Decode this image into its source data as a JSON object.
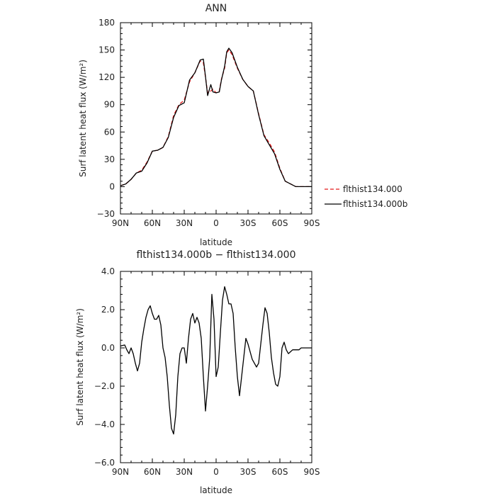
{
  "chart_data": [
    {
      "type": "line",
      "title": "ANN",
      "xlabel": "latitude",
      "ylabel": "Surf latent heat flux (W/m²)",
      "xlim": [
        90,
        -90
      ],
      "ylim": [
        -30,
        180
      ],
      "x_ticks": [
        90,
        60,
        30,
        0,
        -30,
        -60,
        -90
      ],
      "x_tick_labels": [
        "90N",
        "60N",
        "30N",
        "0",
        "30S",
        "60S",
        "90S"
      ],
      "y_ticks": [
        -30,
        0,
        30,
        60,
        90,
        120,
        150,
        180
      ],
      "y_tick_labels": [
        "−30",
        "0",
        "30",
        "60",
        "90",
        "120",
        "150",
        "180"
      ],
      "legend": {
        "placement": "right"
      },
      "series": [
        {
          "name": "flthist134.000",
          "color": "#e41a1c",
          "dash": "dashed",
          "x": [
            90,
            85,
            80,
            75,
            70,
            65,
            60,
            55,
            50,
            45,
            40,
            35,
            30,
            25,
            20,
            15,
            12,
            10,
            8,
            5,
            3,
            0,
            -3,
            -5,
            -8,
            -10,
            -12,
            -15,
            -20,
            -25,
            -30,
            -35,
            -40,
            -45,
            -50,
            -55,
            -60,
            -65,
            -70,
            -75,
            -80,
            -85,
            -90
          ],
          "y": [
            1,
            3,
            8,
            15,
            18,
            27,
            39,
            40,
            43,
            55,
            78,
            90,
            95,
            115,
            125,
            138,
            136,
            120,
            103,
            105,
            107,
            103,
            105,
            118,
            130,
            147,
            150,
            145,
            130,
            118,
            110,
            105,
            80,
            57,
            48,
            38,
            20,
            6,
            3,
            0,
            0,
            0,
            0
          ]
        },
        {
          "name": "flthist134.000b",
          "color": "#000000",
          "dash": "solid",
          "x": [
            90,
            85,
            80,
            75,
            70,
            65,
            60,
            55,
            50,
            45,
            40,
            35,
            30,
            25,
            20,
            15,
            12,
            10,
            8,
            5,
            3,
            0,
            -3,
            -5,
            -8,
            -10,
            -12,
            -15,
            -20,
            -25,
            -30,
            -35,
            -40,
            -45,
            -50,
            -55,
            -60,
            -65,
            -70,
            -75,
            -80,
            -85,
            -90
          ],
          "y": [
            1,
            3,
            8,
            15,
            17,
            26,
            39,
            40,
            43,
            54,
            76,
            89,
            92,
            117,
            125,
            139,
            140,
            121,
            100,
            112,
            104,
            103,
            104,
            117,
            132,
            148,
            152,
            147,
            131,
            118,
            110,
            105,
            79,
            56,
            46,
            36,
            19,
            6,
            3,
            0,
            0,
            0,
            0
          ]
        }
      ]
    },
    {
      "type": "line",
      "title": "flthist134.000b − flthist134.000",
      "xlabel": "latitude",
      "ylabel": "Surf latent heat flux (W/m²)",
      "xlim": [
        90,
        -90
      ],
      "ylim": [
        -6,
        4
      ],
      "x_ticks": [
        90,
        60,
        30,
        0,
        -30,
        -60,
        -90
      ],
      "x_tick_labels": [
        "90N",
        "60N",
        "30N",
        "0",
        "30S",
        "60S",
        "90S"
      ],
      "y_ticks": [
        -6,
        -4,
        -2,
        0,
        2,
        4
      ],
      "y_tick_labels": [
        "−6.0",
        "−4.0",
        "−2.0",
        "0.0",
        "2.0",
        "4.0"
      ],
      "series": [
        {
          "color": "#000000",
          "dash": "solid",
          "x": [
            90,
            86,
            84,
            82,
            80,
            78,
            76,
            74,
            72,
            70,
            68,
            66,
            64,
            62,
            60,
            58,
            56,
            54,
            52,
            50,
            48,
            46,
            44,
            42,
            40,
            38,
            36,
            34,
            32,
            30,
            28,
            26,
            24,
            22,
            20,
            18,
            16,
            14,
            12,
            10,
            8,
            6,
            4,
            2,
            0,
            -2,
            -4,
            -6,
            -8,
            -10,
            -12,
            -14,
            -16,
            -18,
            -20,
            -22,
            -24,
            -26,
            -28,
            -30,
            -32,
            -34,
            -36,
            -38,
            -40,
            -42,
            -44,
            -46,
            -48,
            -50,
            -52,
            -54,
            -56,
            -58,
            -60,
            -62,
            -64,
            -66,
            -68,
            -70,
            -72,
            -74,
            -76,
            -78,
            -80,
            -84,
            -88,
            -90
          ],
          "y": [
            0.1,
            0.15,
            -0.1,
            -0.3,
            0.0,
            -0.3,
            -0.8,
            -1.2,
            -0.8,
            0.3,
            1.0,
            1.6,
            2.0,
            2.2,
            1.8,
            1.5,
            1.5,
            1.7,
            1.2,
            0.0,
            -0.5,
            -1.5,
            -3.0,
            -4.2,
            -4.5,
            -3.5,
            -1.5,
            -0.3,
            0.0,
            0.0,
            -0.8,
            0.5,
            1.5,
            1.8,
            1.3,
            1.6,
            1.3,
            0.5,
            -1.5,
            -3.3,
            -2.0,
            -0.5,
            2.8,
            1.5,
            -1.5,
            -1.0,
            0.8,
            2.5,
            3.2,
            2.8,
            2.3,
            2.3,
            1.8,
            0.0,
            -1.5,
            -2.5,
            -1.5,
            -0.5,
            0.5,
            0.2,
            -0.2,
            -0.6,
            -0.8,
            -1.0,
            -0.8,
            0.2,
            1.2,
            2.1,
            1.8,
            0.8,
            -0.5,
            -1.3,
            -1.9,
            -2.0,
            -1.5,
            0.0,
            0.3,
            -0.1,
            -0.3,
            -0.2,
            -0.1,
            -0.1,
            -0.1,
            -0.1,
            0.0,
            0.0,
            0.0,
            0.0
          ]
        }
      ]
    }
  ]
}
